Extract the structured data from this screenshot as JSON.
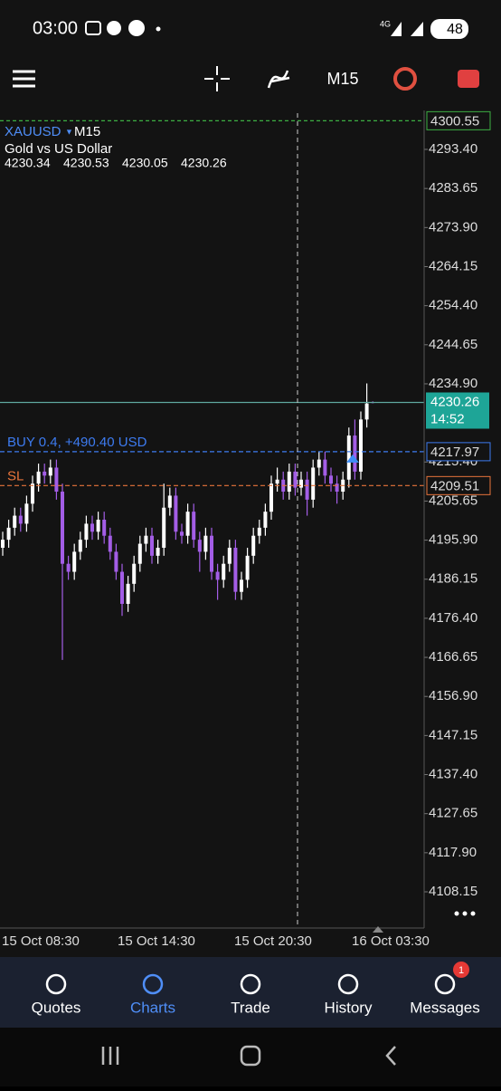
{
  "status_bar": {
    "time": "03:00",
    "network": "4G",
    "battery": "48"
  },
  "toolbar": {
    "timeframe": "M15"
  },
  "chart": {
    "symbol": "XAUUSD",
    "timeframe": "M15",
    "description": "Gold vs US Dollar",
    "ohlc": [
      4230.34,
      4230.53,
      4230.05,
      4230.26
    ],
    "yticks": [
      {
        "value": 4293.4,
        "label": "4293.40"
      },
      {
        "value": 4283.65,
        "label": "4283.65"
      },
      {
        "value": 4273.9,
        "label": "4273.90"
      },
      {
        "value": 4264.15,
        "label": "4264.15"
      },
      {
        "value": 4254.4,
        "label": "4254.40"
      },
      {
        "value": 4244.65,
        "label": "4244.65"
      },
      {
        "value": 4234.9,
        "label": "4234.90"
      },
      {
        "value": 4215.4,
        "label": "4215.40"
      },
      {
        "value": 4205.65,
        "label": "4205.65"
      },
      {
        "value": 4195.9,
        "label": "4195.90"
      },
      {
        "value": 4186.15,
        "label": "4186.15"
      },
      {
        "value": 4176.4,
        "label": "4176.40"
      },
      {
        "value": 4166.65,
        "label": "4166.65"
      },
      {
        "value": 4156.9,
        "label": "4156.90"
      },
      {
        "value": 4147.15,
        "label": "4147.15"
      },
      {
        "value": 4137.4,
        "label": "4137.40"
      },
      {
        "value": 4127.65,
        "label": "4127.65"
      },
      {
        "value": 4117.9,
        "label": "4117.90"
      },
      {
        "value": 4108.15,
        "label": "4108.15"
      }
    ],
    "take_profit": 4300.55,
    "current_price": 4230.26,
    "countdown": "14:52",
    "buy": {
      "label": "BUY 0.4,  +490.40 USD",
      "price": 4217.97
    },
    "stop_loss": {
      "label": "SL",
      "price": 4209.51
    },
    "time_labels": [
      "15 Oct 08:30",
      "15 Oct 14:30",
      "15 Oct 20:30",
      "16 Oct 03:30"
    ],
    "candles": [
      [
        4194,
        4198,
        4192,
        4196
      ],
      [
        4196,
        4201,
        4194,
        4199
      ],
      [
        4199,
        4204,
        4197,
        4202
      ],
      [
        4202,
        4204,
        4198,
        4200
      ],
      [
        4200,
        4207,
        4198,
        4205
      ],
      [
        4205,
        4212,
        4203,
        4210
      ],
      [
        4210,
        4215,
        4208,
        4213
      ],
      [
        4213,
        4215,
        4210,
        4212
      ],
      [
        4212,
        4216,
        4210,
        4214
      ],
      [
        4214,
        4216,
        4206,
        4208
      ],
      [
        4208,
        4210,
        4166,
        4190
      ],
      [
        4190,
        4192,
        4186,
        4188
      ],
      [
        4188,
        4195,
        4186,
        4193
      ],
      [
        4193,
        4198,
        4191,
        4196
      ],
      [
        4196,
        4202,
        4194,
        4200
      ],
      [
        4200,
        4202,
        4196,
        4198
      ],
      [
        4198,
        4203,
        4196,
        4201
      ],
      [
        4201,
        4203,
        4195,
        4197
      ],
      [
        4197,
        4199,
        4191,
        4193
      ],
      [
        4193,
        4195,
        4186,
        4188
      ],
      [
        4188,
        4190,
        4177,
        4180
      ],
      [
        4180,
        4187,
        4178,
        4185
      ],
      [
        4185,
        4192,
        4183,
        4190
      ],
      [
        4190,
        4197,
        4188,
        4195
      ],
      [
        4195,
        4199,
        4193,
        4197
      ],
      [
        4197,
        4199,
        4190,
        4192
      ],
      [
        4192,
        4196,
        4190,
        4194
      ],
      [
        4194,
        4210,
        4192,
        4204
      ],
      [
        4204,
        4209,
        4202,
        4207
      ],
      [
        4207,
        4209,
        4196,
        4198
      ],
      [
        4198,
        4200,
        4195,
        4197
      ],
      [
        4197,
        4205,
        4195,
        4203
      ],
      [
        4203,
        4205,
        4194,
        4196
      ],
      [
        4196,
        4198,
        4188,
        4193
      ],
      [
        4193,
        4199,
        4191,
        4197
      ],
      [
        4197,
        4199,
        4186,
        4188
      ],
      [
        4188,
        4190,
        4181,
        4186
      ],
      [
        4186,
        4192,
        4184,
        4190
      ],
      [
        4190,
        4196,
        4188,
        4194
      ],
      [
        4194,
        4196,
        4181,
        4183
      ],
      [
        4183,
        4188,
        4181,
        4186
      ],
      [
        4186,
        4194,
        4184,
        4192
      ],
      [
        4192,
        4199,
        4190,
        4197
      ],
      [
        4197,
        4201,
        4195,
        4199
      ],
      [
        4199,
        4205,
        4197,
        4203
      ],
      [
        4203,
        4212,
        4201,
        4210
      ],
      [
        4210,
        4214,
        4208,
        4211
      ],
      [
        4211,
        4213,
        4206,
        4208
      ],
      [
        4208,
        4215,
        4206,
        4213
      ],
      [
        4213,
        4215,
        4207,
        4209
      ],
      [
        4209,
        4213,
        4207,
        4211
      ],
      [
        4211,
        4213,
        4202,
        4206
      ],
      [
        4206,
        4216,
        4204,
        4214
      ],
      [
        4214,
        4218,
        4212,
        4216
      ],
      [
        4216,
        4218,
        4210,
        4212
      ],
      [
        4212,
        4214,
        4208,
        4210
      ],
      [
        4210,
        4212,
        4205,
        4208
      ],
      [
        4208,
        4213,
        4206,
        4211
      ],
      [
        4211,
        4224,
        4209,
        4222
      ],
      [
        4222,
        4226,
        4211,
        4213
      ],
      [
        4213,
        4228,
        4211,
        4226
      ],
      [
        4226,
        4235,
        4224,
        4230
      ],
      [
        4230.34,
        4230.53,
        4230.05,
        4230.26
      ]
    ]
  },
  "bottom_nav": [
    {
      "label": "Quotes"
    },
    {
      "label": "Charts"
    },
    {
      "label": "Trade"
    },
    {
      "label": "History"
    },
    {
      "label": "Messages",
      "badge": "1"
    }
  ]
}
